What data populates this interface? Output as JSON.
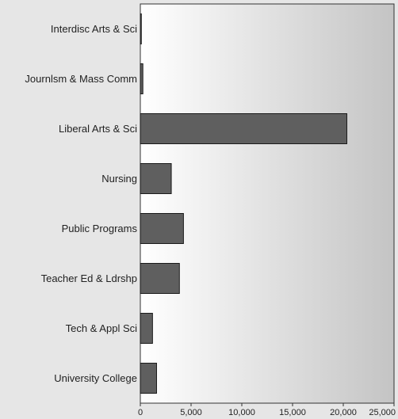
{
  "chart_data": {
    "type": "bar",
    "orientation": "horizontal",
    "categories": [
      "Interdisc Arts & Sci",
      "Journlsm & Mass Comm",
      "Liberal Arts & Sci",
      "Nursing",
      "Public Programs",
      "Teacher Ed & Ldrshp",
      "Tech & Appl Sci",
      "University College"
    ],
    "values": [
      100,
      250,
      20350,
      3050,
      4250,
      3850,
      1200,
      1600
    ],
    "xlim": [
      0,
      25000
    ],
    "xticks": [
      0,
      5000,
      10000,
      15000,
      20000,
      25000
    ],
    "xtick_labels": [
      "0",
      "5,000",
      "10,000",
      "15,000",
      "20,000",
      "25,000"
    ],
    "title": "",
    "xlabel": "",
    "ylabel": "",
    "grid": false,
    "legend": "none",
    "colors": {
      "bar_fill": "#5f5f5f",
      "bar_stroke": "#1a1a1a",
      "plot_gradient_left": "#ffffff",
      "plot_gradient_right": "#c4c4c4",
      "page_background": "#e6e6e6",
      "axis": "#333333"
    }
  }
}
